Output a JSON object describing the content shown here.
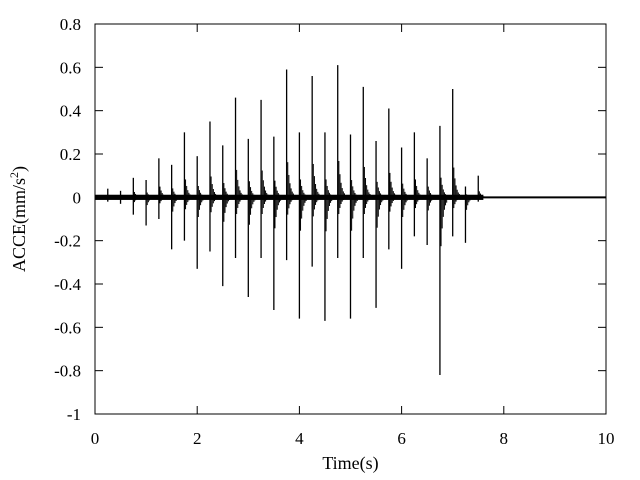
{
  "chart_data": {
    "type": "line",
    "xlabel": "Time(s)",
    "ylabel": {
      "text": "ACCE(mm/s",
      "superscript": "2",
      "suffix": ")"
    },
    "xlim": [
      0,
      10
    ],
    "ylim": [
      -1,
      0.8
    ],
    "x_ticks": [
      0,
      2,
      4,
      6,
      8,
      10
    ],
    "y_ticks": [
      -1,
      -0.8,
      -0.6,
      -0.4,
      -0.2,
      0,
      0.2,
      0.4,
      0.6,
      0.8
    ],
    "x_tick_labels": [
      "0",
      "2",
      "4",
      "6",
      "8",
      "10"
    ],
    "y_tick_labels": [
      "-1",
      "-0.8",
      "-0.6",
      "-0.4",
      "-0.2",
      "0",
      "0.2",
      "0.4",
      "0.6",
      "0.8"
    ],
    "grid": false,
    "series_color": "#000000",
    "signal_end_time": 7.6,
    "series": [
      {
        "impulses": [
          {
            "t": 0.25,
            "max": 0.04,
            "min": -0.02
          },
          {
            "t": 0.5,
            "max": 0.03,
            "min": -0.03
          },
          {
            "t": 0.75,
            "max": 0.09,
            "min": -0.08
          },
          {
            "t": 1.0,
            "max": 0.08,
            "min": -0.13
          },
          {
            "t": 1.25,
            "max": 0.18,
            "min": -0.1
          },
          {
            "t": 1.5,
            "max": 0.15,
            "min": -0.24
          },
          {
            "t": 1.75,
            "max": 0.3,
            "min": -0.2
          },
          {
            "t": 2.0,
            "max": 0.19,
            "min": -0.33
          },
          {
            "t": 2.25,
            "max": 0.35,
            "min": -0.25
          },
          {
            "t": 2.5,
            "max": 0.24,
            "min": -0.41
          },
          {
            "t": 2.75,
            "max": 0.46,
            "min": -0.28
          },
          {
            "t": 3.0,
            "max": 0.27,
            "min": -0.46
          },
          {
            "t": 3.25,
            "max": 0.45,
            "min": -0.28
          },
          {
            "t": 3.5,
            "max": 0.28,
            "min": -0.52
          },
          {
            "t": 3.75,
            "max": 0.59,
            "min": -0.29
          },
          {
            "t": 4.0,
            "max": 0.3,
            "min": -0.56
          },
          {
            "t": 4.25,
            "max": 0.56,
            "min": -0.32
          },
          {
            "t": 4.5,
            "max": 0.3,
            "min": -0.57
          },
          {
            "t": 4.75,
            "max": 0.61,
            "min": -0.28
          },
          {
            "t": 5.0,
            "max": 0.29,
            "min": -0.56
          },
          {
            "t": 5.25,
            "max": 0.51,
            "min": -0.28
          },
          {
            "t": 5.5,
            "max": 0.26,
            "min": -0.51
          },
          {
            "t": 5.75,
            "max": 0.41,
            "min": -0.24
          },
          {
            "t": 6.0,
            "max": 0.23,
            "min": -0.33
          },
          {
            "t": 6.25,
            "max": 0.3,
            "min": -0.18
          },
          {
            "t": 6.5,
            "max": 0.18,
            "min": -0.22
          },
          {
            "t": 6.75,
            "max": 0.33,
            "min": -0.82
          },
          {
            "t": 7.0,
            "max": 0.5,
            "min": -0.18
          },
          {
            "t": 7.25,
            "max": 0.05,
            "min": -0.21
          },
          {
            "t": 7.5,
            "max": 0.1,
            "min": -0.02
          }
        ]
      }
    ]
  }
}
